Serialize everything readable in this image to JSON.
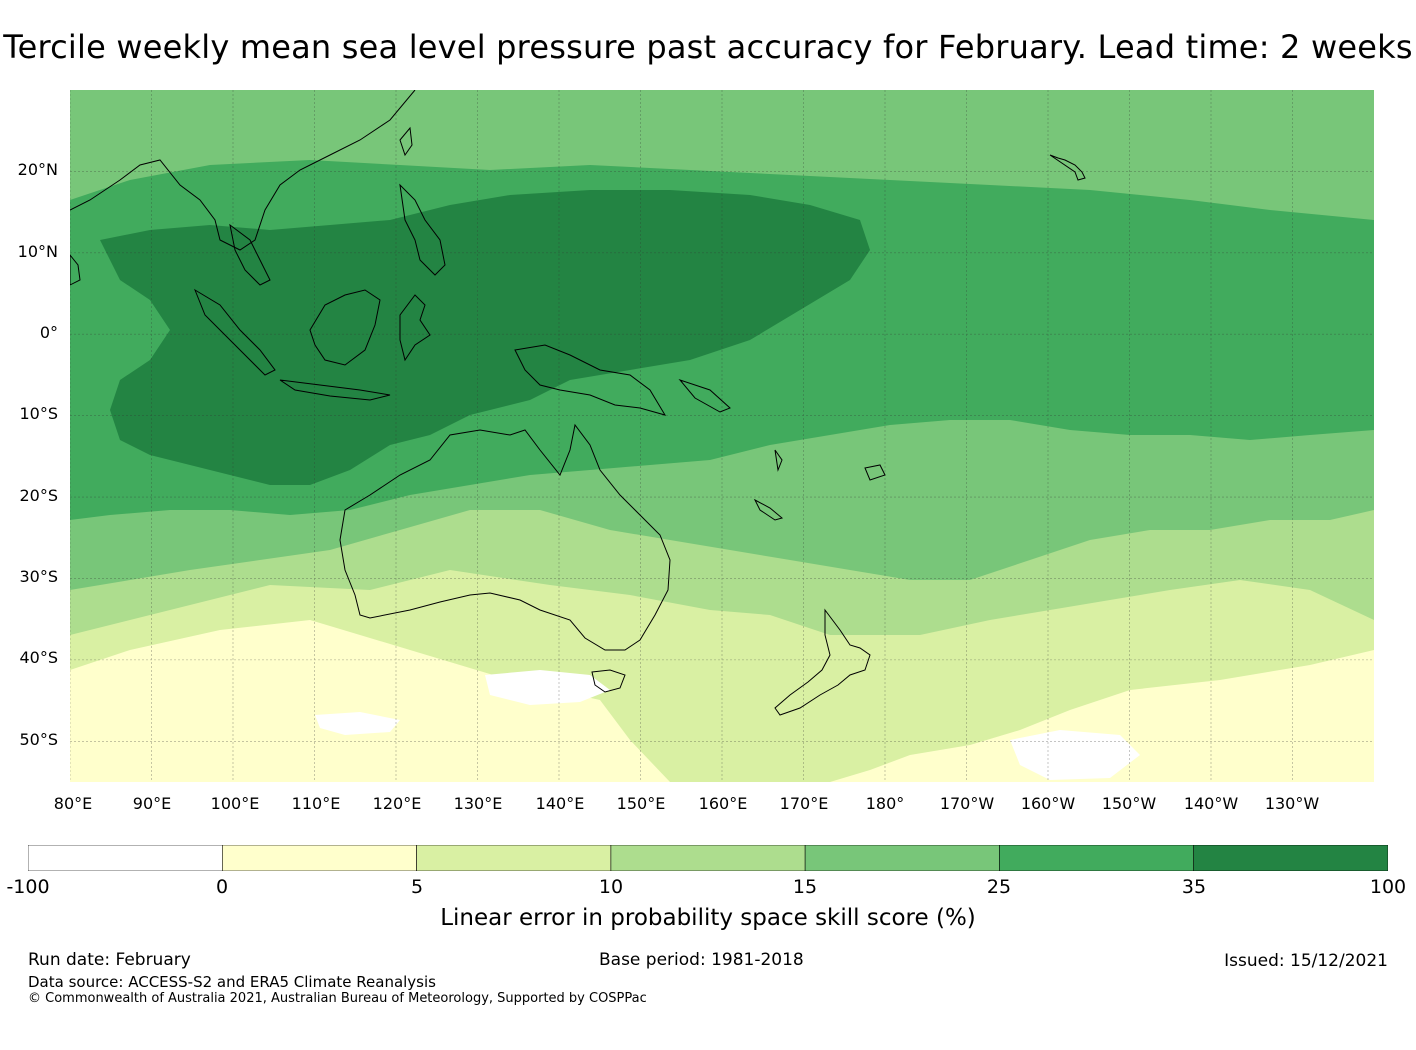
{
  "title": "Tercile weekly mean sea level pressure past accuracy for February. Lead time: 2 weeks",
  "map": {
    "region": "Western Pacific, Maritime Continent and Australia",
    "lat_labels": [
      "20°N",
      "10°N",
      "0°",
      "10°S",
      "20°S",
      "30°S",
      "40°S",
      "50°S"
    ],
    "lon_labels": [
      "80°E",
      "90°E",
      "100°E",
      "110°E",
      "120°E",
      "130°E",
      "140°E",
      "150°E",
      "160°E",
      "170°E",
      "180°",
      "170°W",
      "160°W",
      "150°W",
      "140°W",
      "130°W"
    ],
    "lat_values": [
      20,
      10,
      0,
      -10,
      -20,
      -30,
      -40,
      -50
    ],
    "lon_values": [
      80,
      90,
      100,
      110,
      120,
      130,
      140,
      150,
      160,
      170,
      180,
      190,
      200,
      210,
      220,
      230
    ],
    "lat_range": [
      -55,
      30
    ],
    "lon_range": [
      80,
      240
    ],
    "gridlines": true
  },
  "legend": {
    "ticks": [
      "-100",
      "0",
      "5",
      "10",
      "15",
      "25",
      "35",
      "100"
    ],
    "colors": [
      "#ffffff",
      "#ffffcc",
      "#d9f0a3",
      "#addd8e",
      "#78c679",
      "#41ab5d",
      "#238443"
    ],
    "label": "Linear error in probability space skill score (%)"
  },
  "footer": {
    "run_date": "Run date: February",
    "base_period": "Base period: 1981-2018",
    "issued": "Issued: 15/12/2021",
    "data_source": "Data source: ACCESS-S2 and ERA5 Climate Reanalysis",
    "copyright": "© Commonwealth of Australia 2021, Australian Bureau of Meteorology, Supported by COSPPac"
  }
}
